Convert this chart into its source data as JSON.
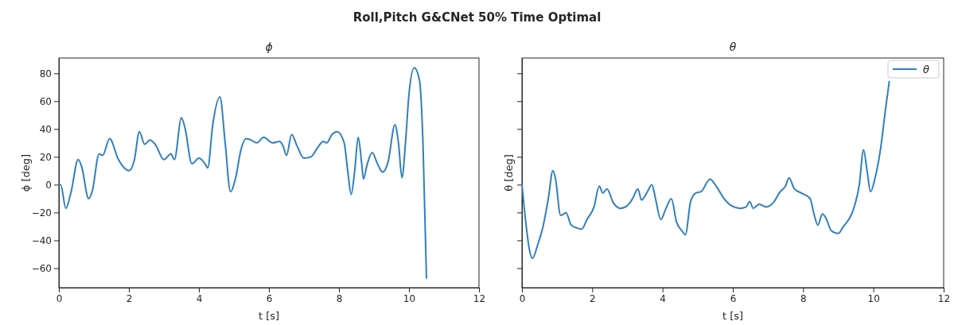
{
  "chart_data": [
    {
      "type": "line",
      "title": "ϕ",
      "xlabel": "t [s]",
      "ylabel": "ϕ [deg]",
      "annotations": [
        "Roll,Pitch G&CNet 50% Time Optimal"
      ],
      "xlim": [
        0,
        12
      ],
      "xticks": [
        0,
        2,
        4,
        6,
        8,
        10,
        12
      ],
      "ylim": [
        -74,
        91
      ],
      "yticks": [
        -60,
        -40,
        -20,
        0,
        20,
        40,
        60,
        80
      ],
      "grid": false,
      "series": [
        {
          "color": "#2f7fbf",
          "x": [
            0,
            0.05,
            0.2,
            0.35,
            0.55,
            0.65,
            0.85,
            0.95,
            1.15,
            1.25,
            1.45,
            1.7,
            2.0,
            2.15,
            2.3,
            2.45,
            2.6,
            2.75,
            3.0,
            3.2,
            3.3,
            3.5,
            3.6,
            3.8,
            4.0,
            4.2,
            4.25,
            4.4,
            4.6,
            4.75,
            4.9,
            5.05,
            5.2,
            5.35,
            5.5,
            5.65,
            5.85,
            6.1,
            6.3,
            6.4,
            6.5,
            6.65,
            6.8,
            7.0,
            7.2,
            7.4,
            7.55,
            7.65,
            7.8,
            7.95,
            8.15,
            8.25,
            8.35,
            8.45,
            8.55,
            8.65,
            8.7,
            8.8,
            8.95,
            9.1,
            9.25,
            9.4,
            9.6,
            9.7,
            9.8,
            9.9,
            10.0,
            10.15,
            10.3,
            10.4,
            10.5
          ],
          "values": [
            0,
            0,
            -17,
            -5,
            18,
            13,
            -10,
            -5,
            22,
            21,
            33,
            18,
            10,
            17,
            38,
            29,
            32,
            29,
            18,
            22,
            18,
            48,
            41,
            15,
            19,
            14,
            12,
            44,
            63,
            30,
            -5,
            5,
            25,
            33,
            32,
            30,
            34,
            30,
            31,
            28,
            21,
            36,
            28,
            19,
            20,
            27,
            31,
            30,
            36,
            38,
            30,
            10,
            -7,
            10,
            34,
            15,
            4,
            14,
            23,
            15,
            9,
            16,
            43,
            30,
            5,
            30,
            65,
            84,
            75,
            30,
            -67
          ]
        }
      ]
    },
    {
      "type": "line",
      "title": "θ",
      "xlabel": "t [s]",
      "ylabel": "θ [deg]",
      "xlim": [
        0,
        12
      ],
      "xticks": [
        0,
        2,
        4,
        6,
        8,
        10,
        12
      ],
      "ylim": [
        -74,
        91
      ],
      "yticks": [
        -60,
        -40,
        -20,
        0,
        20,
        40,
        60,
        80
      ],
      "tick_labels": "x",
      "grid": false,
      "legend": "top right",
      "series": [
        {
          "name": "θ",
          "color": "#2f7fbf",
          "x": [
            0,
            0.1,
            0.2,
            0.3,
            0.45,
            0.6,
            0.75,
            0.88,
            0.95,
            1.1,
            1.2,
            1.25,
            1.4,
            1.55,
            1.7,
            1.85,
            2.05,
            2.2,
            2.3,
            2.42,
            2.6,
            2.8,
            3.0,
            3.15,
            3.3,
            3.4,
            3.55,
            3.7,
            3.8,
            3.95,
            4.1,
            4.25,
            4.4,
            4.55,
            4.65,
            4.8,
            4.95,
            5.1,
            5.35,
            5.55,
            5.75,
            5.95,
            6.2,
            6.38,
            6.48,
            6.58,
            6.75,
            6.95,
            7.15,
            7.35,
            7.5,
            7.6,
            7.75,
            7.95,
            8.2,
            8.3,
            8.42,
            8.55,
            8.65,
            8.8,
            9.0,
            9.15,
            9.4,
            9.6,
            9.72,
            9.82,
            9.92,
            10.05,
            10.2,
            10.35,
            10.45
          ],
          "values": [
            0,
            -25,
            -45,
            -53,
            -43,
            -30,
            -10,
            10,
            5,
            -22,
            -21,
            -20,
            -29,
            -31,
            -32,
            -25,
            -16,
            -1,
            -6,
            -3,
            -13,
            -17,
            -15,
            -10,
            -3,
            -11,
            -6,
            0,
            -10,
            -25,
            -17,
            -10,
            -27,
            -33,
            -36,
            -12,
            -6,
            -5,
            4,
            -2,
            -10,
            -15,
            -17,
            -16,
            -12,
            -17,
            -14,
            -16,
            -13,
            -5,
            -1,
            5,
            -3,
            -6,
            -10,
            -20,
            -29,
            -21,
            -24,
            -33,
            -35,
            -30,
            -20,
            0,
            25,
            10,
            -5,
            5,
            25,
            55,
            74
          ]
        }
      ]
    }
  ]
}
